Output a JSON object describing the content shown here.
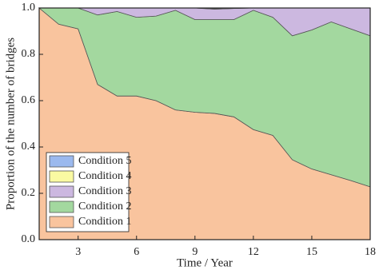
{
  "chart_data": {
    "type": "stacked_area",
    "x_label": "Time / Year",
    "y_label": "Proportion of the number of bridges",
    "x": [
      1,
      2,
      3,
      4,
      5,
      6,
      7,
      8,
      9,
      10,
      11,
      12,
      13,
      14,
      15,
      16,
      17,
      18
    ],
    "series": [
      {
        "name": "Condition 1",
        "color": "#f9c49e",
        "values": [
          1.0,
          0.93,
          0.91,
          0.67,
          0.62,
          0.62,
          0.6,
          0.56,
          0.55,
          0.545,
          0.53,
          0.475,
          0.45,
          0.345,
          0.305,
          0.28,
          0.255,
          0.228
        ]
      },
      {
        "name": "Condition 2",
        "color": "#a3d89f",
        "values": [
          0,
          0.07,
          0.09,
          0.3,
          0.365,
          0.34,
          0.365,
          0.43,
          0.4,
          0.405,
          0.42,
          0.515,
          0.51,
          0.535,
          0.6,
          0.66,
          0.655,
          0.652
        ]
      },
      {
        "name": "Condition 3",
        "color": "#ccb8e0",
        "values": [
          0,
          0,
          0,
          0.03,
          0.015,
          0.04,
          0.035,
          0.01,
          0.05,
          0.045,
          0.048,
          0.01,
          0.04,
          0.12,
          0.095,
          0.06,
          0.09,
          0.12
        ]
      },
      {
        "name": "Condition 4",
        "color": "#fafaa2",
        "values": [
          0,
          0,
          0,
          0,
          0,
          0,
          0,
          0,
          0,
          0.003,
          0.002,
          0,
          0,
          0,
          0,
          0,
          0,
          0
        ]
      },
      {
        "name": "Condition 5",
        "color": "#9bb9ee",
        "values": [
          0,
          0,
          0,
          0,
          0,
          0,
          0,
          0,
          0,
          0.002,
          0,
          0,
          0,
          0,
          0,
          0,
          0,
          0
        ]
      }
    ],
    "xlim": [
      1,
      18
    ],
    "xticks": [
      3,
      6,
      9,
      12,
      15,
      18
    ],
    "ylim": [
      0,
      1
    ],
    "yticks": [
      {
        "value": 0,
        "label": "0.0"
      },
      0.2,
      0.4,
      0.6,
      0.8,
      {
        "value": 1,
        "label": "1.0"
      }
    ],
    "legend": "lower left"
  }
}
